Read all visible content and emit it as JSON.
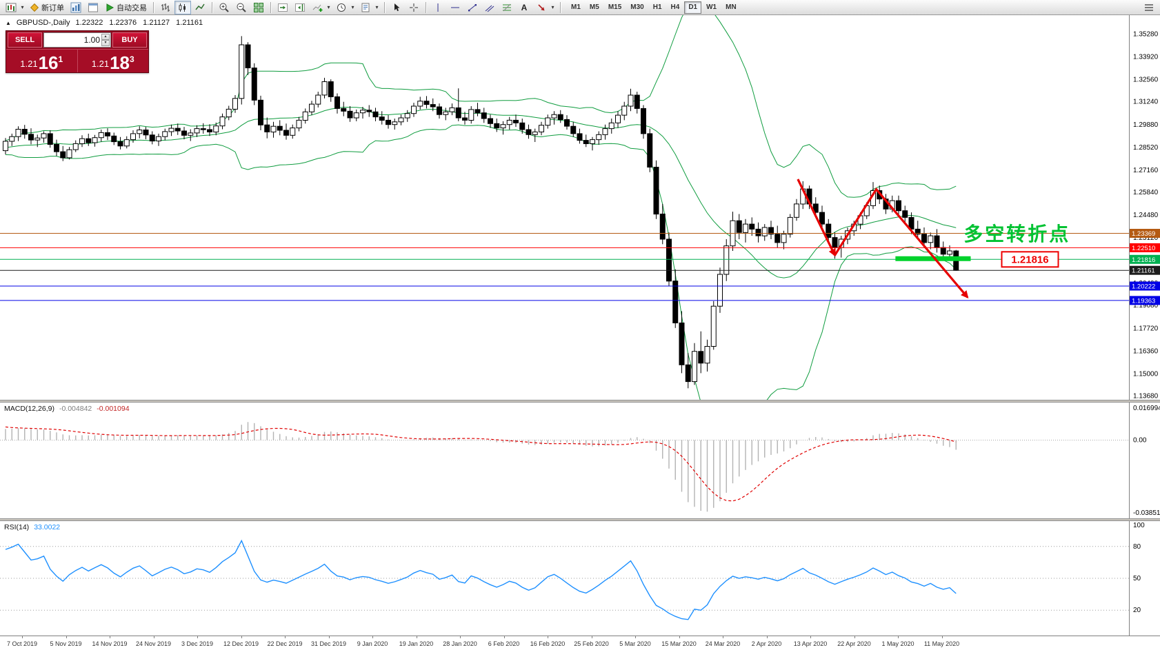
{
  "icons": {
    "caret": "▾",
    "spinner_up": "▴",
    "spinner_down": "▾",
    "collapse": "▲"
  },
  "toolbar": {
    "new_order_label": "新订单",
    "autotrading_label": "自动交易",
    "timeframes": [
      "M1",
      "M5",
      "M15",
      "M30",
      "H1",
      "H4",
      "D1",
      "W1",
      "MN"
    ],
    "active_timeframe": "D1"
  },
  "chart_header": {
    "symbol_period": "GBPUSD-,Daily",
    "ohlc": "1.22322 1.22376 1.21127 1.21161"
  },
  "trade_panel": {
    "sell_label": "SELL",
    "buy_label": "BUY",
    "volume": "1.00",
    "sell_price": {
      "base": "1.21",
      "big": "16",
      "pip": "1"
    },
    "buy_price": {
      "base": "1.21",
      "big": "18",
      "pip": "3"
    }
  },
  "hlines": [
    {
      "price": 1.23369,
      "label": "1.23369",
      "color": "#b45a12"
    },
    {
      "price": 1.2251,
      "label": "1.22510",
      "color": "#ff0000"
    },
    {
      "price": 1.21816,
      "label": "1.21816",
      "color": "#00b050"
    },
    {
      "price": 1.21161,
      "label": "1.21161",
      "color": "#1c1c1c"
    },
    {
      "price": 1.20222,
      "label": "1.20222",
      "color": "#0000e6"
    },
    {
      "price": 1.19363,
      "label": "1.19363",
      "color": "#0000e6"
    }
  ],
  "y_axis": {
    "ticks": [
      "1.35280",
      "1.33920",
      "1.32560",
      "1.31240",
      "1.29880",
      "1.28520",
      "1.27160",
      "1.25840",
      "1.24480",
      "1.23120",
      "1.21760",
      "1.20400",
      "1.19080",
      "1.17720",
      "1.16360",
      "1.15000",
      "1.13680"
    ]
  },
  "x_axis": {
    "dates": [
      "7 Oct 2019",
      "5 Nov 2019",
      "14 Nov 2019",
      "24 Nov 2019",
      "3 Dec 2019",
      "12 Dec 2019",
      "22 Dec 2019",
      "31 Dec 2019",
      "9 Jan 2020",
      "19 Jan 2020",
      "28 Jan 2020",
      "6 Feb 2020",
      "16 Feb 2020",
      "25 Feb 2020",
      "5 Mar 2020",
      "15 Mar 2020",
      "24 Mar 2020",
      "2 Apr 2020",
      "13 Apr 2020",
      "22 Apr 2020",
      "1 May 2020",
      "11 May 2020"
    ]
  },
  "indicators": {
    "macd": {
      "name": "MACD(12,26,9)",
      "value_main": "-0.004842",
      "value_signal": "-0.001094",
      "scale": [
        "0.016994",
        "0.00",
        "-0.038519"
      ],
      "fast": 12,
      "slow": 26,
      "signal": 9
    },
    "rsi": {
      "name": "RSI(14)",
      "value": "33.0022",
      "period": 14,
      "levels": [
        80,
        50,
        20
      ],
      "scale_top": "100"
    }
  },
  "colors": {
    "bollinger": "#0e9c3e",
    "macd_hist": "#b3b3b3",
    "macd_signal": "#e00000",
    "rsi": "#1e90ff",
    "arrow": "#e60000",
    "highlight": "#00d22c",
    "annotation": "#00c232",
    "panel_red": "#a50d26"
  },
  "chart_data": {
    "type": "candlestick",
    "symbol": "GBPUSD-",
    "period": "Daily",
    "ylim": [
      1.1368,
      1.3528
    ],
    "overlays": {
      "bollinger": {
        "period": 20,
        "deviation": 2
      }
    },
    "candles": [
      [
        1.283,
        1.2906,
        1.2808,
        1.2886
      ],
      [
        1.2886,
        1.2932,
        1.2858,
        1.2914
      ],
      [
        1.2914,
        1.2976,
        1.2888,
        1.2958
      ],
      [
        1.2958,
        1.2984,
        1.2902,
        1.2928
      ],
      [
        1.2928,
        1.2964,
        1.2868,
        1.2894
      ],
      [
        1.2894,
        1.2926,
        1.2852,
        1.2906
      ],
      [
        1.2906,
        1.2946,
        1.2878,
        1.2932
      ],
      [
        1.2932,
        1.2952,
        1.2848,
        1.2868
      ],
      [
        1.2868,
        1.2896,
        1.2798,
        1.2824
      ],
      [
        1.2824,
        1.2858,
        1.2768,
        1.2788
      ],
      [
        1.2788,
        1.2852,
        1.2778,
        1.2836
      ],
      [
        1.2836,
        1.2892,
        1.2822,
        1.2872
      ],
      [
        1.2872,
        1.2922,
        1.2852,
        1.2902
      ],
      [
        1.2902,
        1.2932,
        1.2858,
        1.2878
      ],
      [
        1.2878,
        1.2924,
        1.2854,
        1.2908
      ],
      [
        1.2908,
        1.2956,
        1.2884,
        1.2938
      ],
      [
        1.2938,
        1.2964,
        1.2894,
        1.2918
      ],
      [
        1.2918,
        1.2938,
        1.2864,
        1.2884
      ],
      [
        1.2884,
        1.2912,
        1.2838,
        1.2858
      ],
      [
        1.2858,
        1.2916,
        1.2844,
        1.2896
      ],
      [
        1.2896,
        1.2952,
        1.2878,
        1.2932
      ],
      [
        1.2932,
        1.2976,
        1.2904,
        1.2954
      ],
      [
        1.2954,
        1.2972,
        1.2898,
        1.2924
      ],
      [
        1.2924,
        1.2946,
        1.2868,
        1.2888
      ],
      [
        1.2888,
        1.2932,
        1.2858,
        1.2914
      ],
      [
        1.2914,
        1.2962,
        1.2892,
        1.2944
      ],
      [
        1.2944,
        1.2986,
        1.2918,
        1.2964
      ],
      [
        1.2964,
        1.2992,
        1.2924,
        1.2948
      ],
      [
        1.2948,
        1.2972,
        1.2898,
        1.2922
      ],
      [
        1.2922,
        1.2958,
        1.2888,
        1.2936
      ],
      [
        1.2936,
        1.2982,
        1.2912,
        1.2962
      ],
      [
        1.2962,
        1.2994,
        1.2932,
        1.2956
      ],
      [
        1.2956,
        1.2988,
        1.2918,
        1.2942
      ],
      [
        1.2942,
        1.2998,
        1.2922,
        1.2978
      ],
      [
        1.2978,
        1.3052,
        1.2958,
        1.3032
      ],
      [
        1.3032,
        1.3098,
        1.3012,
        1.3078
      ],
      [
        1.3078,
        1.3162,
        1.3056,
        1.3142
      ],
      [
        1.3142,
        1.3514,
        1.3106,
        1.3462
      ],
      [
        1.3462,
        1.3478,
        1.3282,
        1.3324
      ],
      [
        1.3324,
        1.3352,
        1.3102,
        1.3132
      ],
      [
        1.3132,
        1.3158,
        1.2952,
        1.2984
      ],
      [
        1.2984,
        1.3028,
        1.2904,
        1.2942
      ],
      [
        1.2942,
        1.3002,
        1.2908,
        1.2976
      ],
      [
        1.2976,
        1.3012,
        1.2922,
        1.2952
      ],
      [
        1.2952,
        1.2992,
        1.2896,
        1.2922
      ],
      [
        1.2922,
        1.2986,
        1.2902,
        1.2966
      ],
      [
        1.2966,
        1.3032,
        1.2946,
        1.3012
      ],
      [
        1.3012,
        1.3082,
        1.2992,
        1.3062
      ],
      [
        1.3062,
        1.3128,
        1.3042,
        1.3108
      ],
      [
        1.3108,
        1.3182,
        1.3088,
        1.3162
      ],
      [
        1.3162,
        1.3265,
        1.3142,
        1.3242
      ],
      [
        1.3242,
        1.3256,
        1.3122,
        1.3152
      ],
      [
        1.3152,
        1.3172,
        1.3052,
        1.3082
      ],
      [
        1.3082,
        1.3122,
        1.3036,
        1.3066
      ],
      [
        1.3066,
        1.3096,
        1.3002,
        1.3026
      ],
      [
        1.3026,
        1.3076,
        1.3006,
        1.3056
      ],
      [
        1.3056,
        1.3092,
        1.3022,
        1.3072
      ],
      [
        1.3072,
        1.3102,
        1.3032,
        1.3062
      ],
      [
        1.3062,
        1.3086,
        1.3006,
        1.3032
      ],
      [
        1.3032,
        1.3066,
        1.2986,
        1.3012
      ],
      [
        1.3012,
        1.3042,
        1.2962,
        1.2986
      ],
      [
        1.2986,
        1.3022,
        1.2956,
        1.3002
      ],
      [
        1.3002,
        1.3046,
        1.2982,
        1.3026
      ],
      [
        1.3026,
        1.3072,
        1.3002,
        1.3052
      ],
      [
        1.3052,
        1.3116,
        1.3032,
        1.3096
      ],
      [
        1.3096,
        1.3152,
        1.3076,
        1.3126
      ],
      [
        1.3126,
        1.3156,
        1.3082,
        1.3106
      ],
      [
        1.3106,
        1.3142,
        1.3066,
        1.3092
      ],
      [
        1.3092,
        1.3112,
        1.3022,
        1.3046
      ],
      [
        1.3046,
        1.3086,
        1.3012,
        1.3062
      ],
      [
        1.3062,
        1.3112,
        1.3042,
        1.3086
      ],
      [
        1.3086,
        1.3202,
        1.3006,
        1.3026
      ],
      [
        1.3026,
        1.3062,
        1.2986,
        1.3012
      ],
      [
        1.3012,
        1.3096,
        1.2992,
        1.3076
      ],
      [
        1.3076,
        1.3116,
        1.3036,
        1.3056
      ],
      [
        1.3056,
        1.3086,
        1.2996,
        1.3022
      ],
      [
        1.3022,
        1.3046,
        1.2966,
        1.2992
      ],
      [
        1.2992,
        1.3022,
        1.2942,
        1.2966
      ],
      [
        1.2966,
        1.3006,
        1.2926,
        1.2986
      ],
      [
        1.2986,
        1.3032,
        1.2956,
        1.3012
      ],
      [
        1.3012,
        1.3046,
        1.2972,
        1.2996
      ],
      [
        1.2996,
        1.3022,
        1.2932,
        1.2956
      ],
      [
        1.2956,
        1.2986,
        1.2902,
        1.2926
      ],
      [
        1.2926,
        1.2962,
        1.2882,
        1.2942
      ],
      [
        1.2942,
        1.3002,
        1.2922,
        1.2982
      ],
      [
        1.2982,
        1.3046,
        1.2962,
        1.3026
      ],
      [
        1.3026,
        1.3066,
        1.2986,
        1.3046
      ],
      [
        1.3046,
        1.3072,
        1.2996,
        1.3016
      ],
      [
        1.3016,
        1.3042,
        1.2956,
        1.2976
      ],
      [
        1.2976,
        1.3002,
        1.2912,
        1.2932
      ],
      [
        1.2932,
        1.2962,
        1.2872,
        1.2892
      ],
      [
        1.2892,
        1.2926,
        1.2852,
        1.2872
      ],
      [
        1.2872,
        1.2912,
        1.2832,
        1.2896
      ],
      [
        1.2896,
        1.2946,
        1.2866,
        1.2926
      ],
      [
        1.2926,
        1.2986,
        1.2896,
        1.2962
      ],
      [
        1.2962,
        1.3022,
        1.2932,
        1.2996
      ],
      [
        1.2996,
        1.3066,
        1.2966,
        1.3042
      ],
      [
        1.3042,
        1.3122,
        1.3012,
        1.3096
      ],
      [
        1.3096,
        1.32,
        1.3066,
        1.3162
      ],
      [
        1.3162,
        1.3182,
        1.3052,
        1.3082
      ],
      [
        1.3082,
        1.3102,
        1.2902,
        1.2932
      ],
      [
        1.2932,
        1.2962,
        1.2702,
        1.2732
      ],
      [
        1.2732,
        1.2772,
        1.2422,
        1.2452
      ],
      [
        1.2452,
        1.2512,
        1.2272,
        1.2302
      ],
      [
        1.2302,
        1.2342,
        1.2022,
        1.2052
      ],
      [
        1.2052,
        1.2122,
        1.1772,
        1.1802
      ],
      [
        1.1802,
        1.1872,
        1.1502,
        1.1552
      ],
      [
        1.1552,
        1.1622,
        1.1412,
        1.1452
      ],
      [
        1.1452,
        1.1682,
        1.1432,
        1.1632
      ],
      [
        1.1632,
        1.1752,
        1.1502,
        1.1562
      ],
      [
        1.1562,
        1.1702,
        1.1512,
        1.1662
      ],
      [
        1.1662,
        1.1932,
        1.1642,
        1.1902
      ],
      [
        1.1902,
        1.2132,
        1.1862,
        1.2092
      ],
      [
        1.2092,
        1.2302,
        1.2052,
        1.2262
      ],
      [
        1.2262,
        1.2466,
        1.2232,
        1.2412
      ],
      [
        1.2412,
        1.2452,
        1.2302,
        1.2342
      ],
      [
        1.2342,
        1.2422,
        1.2282,
        1.2392
      ],
      [
        1.2392,
        1.2432,
        1.2322,
        1.2362
      ],
      [
        1.2362,
        1.2402,
        1.2282,
        1.2322
      ],
      [
        1.2322,
        1.2392,
        1.2292,
        1.2372
      ],
      [
        1.2372,
        1.2412,
        1.2302,
        1.2332
      ],
      [
        1.2332,
        1.2382,
        1.2252,
        1.2282
      ],
      [
        1.2282,
        1.2352,
        1.2242,
        1.2332
      ],
      [
        1.2332,
        1.2452,
        1.2312,
        1.2432
      ],
      [
        1.2432,
        1.2542,
        1.2412,
        1.2512
      ],
      [
        1.2512,
        1.2648,
        1.2482,
        1.2602
      ],
      [
        1.2602,
        1.2622,
        1.2482,
        1.2512
      ],
      [
        1.2512,
        1.2552,
        1.2432,
        1.2462
      ],
      [
        1.2462,
        1.2502,
        1.2362,
        1.2392
      ],
      [
        1.2392,
        1.2422,
        1.2282,
        1.2312
      ],
      [
        1.2312,
        1.2342,
        1.2186,
        1.2252
      ],
      [
        1.2252,
        1.2322,
        1.2192,
        1.2302
      ],
      [
        1.2302,
        1.2372,
        1.2272,
        1.2352
      ],
      [
        1.2352,
        1.2412,
        1.2322,
        1.2392
      ],
      [
        1.2392,
        1.2462,
        1.2362,
        1.2442
      ],
      [
        1.2442,
        1.2522,
        1.2422,
        1.2502
      ],
      [
        1.2502,
        1.2643,
        1.2482,
        1.2592
      ],
      [
        1.2592,
        1.2622,
        1.2512,
        1.2542
      ],
      [
        1.2542,
        1.2572,
        1.2452,
        1.2482
      ],
      [
        1.2482,
        1.2562,
        1.2462,
        1.2532
      ],
      [
        1.2532,
        1.2562,
        1.2442,
        1.2472
      ],
      [
        1.2472,
        1.2502,
        1.2402,
        1.2432
      ],
      [
        1.2432,
        1.2462,
        1.2332,
        1.2362
      ],
      [
        1.2362,
        1.2412,
        1.2302,
        1.2332
      ],
      [
        1.2332,
        1.2372,
        1.2252,
        1.2282
      ],
      [
        1.2282,
        1.2342,
        1.2242,
        1.2322
      ],
      [
        1.2322,
        1.2362,
        1.2222,
        1.2252
      ],
      [
        1.2252,
        1.2288,
        1.2178,
        1.2212
      ],
      [
        1.2212,
        1.2265,
        1.2175,
        1.2232
      ],
      [
        1.22322,
        1.22376,
        1.21127,
        1.21161
      ]
    ],
    "drawings": {
      "trend_arrows": [
        {
          "points": [
            [
              124.2,
              1.266
            ],
            [
              130.0,
              1.2206
            ]
          ]
        },
        {
          "points": [
            [
              130.0,
              1.2206
            ],
            [
              136.5,
              1.26
            ],
            [
              150.8,
              1.1955
            ]
          ]
        }
      ],
      "support_segment": {
        "i1": 139.5,
        "i2": 151.3,
        "price": 1.21816
      },
      "label_text": {
        "text": "多空转折点",
        "i": 150.2,
        "price": 1.2335
      },
      "price_tag": {
        "text": "1.21816",
        "i": 160.6,
        "price": 1.21816
      }
    }
  }
}
